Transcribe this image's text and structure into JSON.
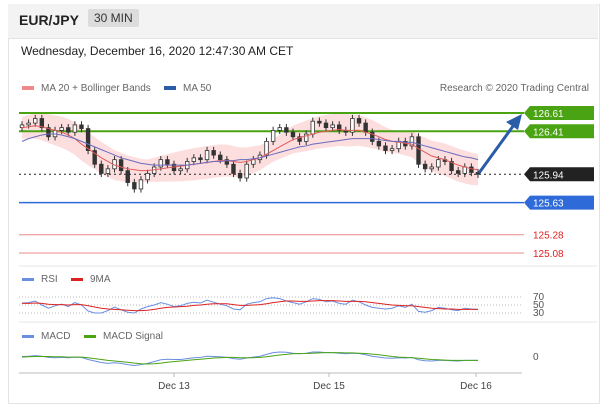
{
  "header": {
    "pair": "EUR/JPY",
    "timeframe": "30 MIN"
  },
  "timestamp": "Wednesday, December 16, 2020 12:47:30 AM CET",
  "legend": {
    "ma20": "MA 20 + Bollinger Bands",
    "ma50": "MA 50",
    "credit": "Research © 2020 Trading Central"
  },
  "rsi_legend": {
    "rsi": "RSI",
    "ma": "9MA"
  },
  "macd_legend": {
    "macd": "MACD",
    "signal": "MACD Signal"
  },
  "colors": {
    "green": "#4aa313",
    "blue": "#2f6bd8",
    "red": "#d22",
    "dark": "#222222",
    "band": "#fbd3d3",
    "ma20": "#e05a5a",
    "ma50": "#6b6bbf",
    "up": "#333333",
    "arrow": "#2b5ca8"
  },
  "chart_data": {
    "type": "candlestick",
    "price_ylim": [
      125.0,
      126.75
    ],
    "levels": [
      {
        "label": "126.61",
        "value": 126.61,
        "kind": "resistance"
      },
      {
        "label": "126.41",
        "value": 126.41,
        "kind": "resistance"
      },
      {
        "label": "125.94",
        "value": 125.94,
        "kind": "current"
      },
      {
        "label": "125.63",
        "value": 125.63,
        "kind": "pivot"
      },
      {
        "label": "125.28",
        "value": 125.28,
        "kind": "support"
      },
      {
        "label": "125.08",
        "value": 125.08,
        "kind": "support"
      }
    ],
    "x_ticks": [
      "Dec 13",
      "Dec 15",
      "Dec 16"
    ],
    "rsi_ticks": [
      "70",
      "50",
      "30"
    ],
    "macd_ticks": [
      "0"
    ],
    "price_close": [
      126.48,
      126.5,
      126.55,
      126.45,
      126.35,
      126.42,
      126.45,
      126.4,
      126.48,
      126.44,
      126.2,
      126.05,
      125.95,
      126.0,
      126.1,
      125.98,
      125.85,
      125.78,
      125.88,
      125.95,
      126.02,
      126.1,
      126.05,
      125.98,
      126.0,
      126.08,
      126.12,
      126.1,
      126.2,
      126.15,
      126.1,
      126.05,
      125.95,
      125.9,
      126.05,
      126.1,
      126.15,
      126.3,
      126.42,
      126.45,
      126.4,
      126.35,
      126.3,
      126.38,
      126.52,
      126.5,
      126.45,
      126.48,
      126.42,
      126.4,
      126.55,
      126.5,
      126.4,
      126.3,
      126.25,
      126.2,
      126.22,
      126.3,
      126.25,
      126.35,
      126.05,
      126.0,
      126.02,
      126.1,
      126.08,
      125.98,
      125.95,
      126.02,
      125.96,
      125.94
    ],
    "ma20": [
      126.45,
      126.46,
      126.47,
      126.46,
      126.44,
      126.42,
      126.4,
      126.37,
      126.33,
      126.27,
      126.22,
      126.17,
      126.12,
      126.08,
      126.04,
      126.02,
      126.0,
      125.99,
      125.98,
      125.98,
      125.99,
      126.0,
      126.01,
      126.02,
      126.03,
      126.04,
      126.05,
      126.06,
      126.07,
      126.08,
      126.09,
      126.09,
      126.08,
      126.07,
      126.08,
      126.1,
      126.12,
      126.16,
      126.2,
      126.24,
      126.28,
      126.32,
      126.34,
      126.36,
      126.38,
      126.4,
      126.41,
      126.42,
      126.43,
      126.42,
      126.42,
      126.42,
      126.4,
      126.38,
      126.35,
      126.32,
      126.3,
      126.29,
      126.28,
      126.27,
      126.22,
      126.18,
      126.14,
      126.12,
      126.1,
      126.07,
      126.04,
      126.02,
      126.0,
      125.99
    ],
    "ma50": [
      126.3,
      126.33,
      126.35,
      126.37,
      126.38,
      126.38,
      126.37,
      126.35,
      126.33,
      126.3,
      126.27,
      126.24,
      126.21,
      126.18,
      126.15,
      126.12,
      126.1,
      126.08,
      126.06,
      126.05,
      126.04,
      126.04,
      126.04,
      126.04,
      126.04,
      126.04,
      126.05,
      126.06,
      126.07,
      126.08,
      126.08,
      126.09,
      126.09,
      126.1,
      126.1,
      126.11,
      126.12,
      126.14,
      126.16,
      126.18,
      126.2,
      126.22,
      126.24,
      126.25,
      126.27,
      126.28,
      126.29,
      126.3,
      126.31,
      126.32,
      126.33,
      126.33,
      126.33,
      126.33,
      126.32,
      126.31,
      126.3,
      126.3,
      126.29,
      126.29,
      126.27,
      126.25,
      126.23,
      126.21,
      126.19,
      126.17,
      126.15,
      126.13,
      126.12,
      126.1
    ],
    "rsi": [
      55,
      56,
      60,
      50,
      42,
      48,
      52,
      46,
      56,
      50,
      35,
      30,
      30,
      36,
      45,
      38,
      32,
      30,
      40,
      46,
      50,
      56,
      52,
      46,
      48,
      54,
      57,
      55,
      62,
      57,
      52,
      48,
      40,
      38,
      52,
      56,
      58,
      66,
      68,
      66,
      60,
      56,
      52,
      58,
      66,
      64,
      58,
      60,
      54,
      52,
      62,
      58,
      50,
      44,
      42,
      40,
      42,
      48,
      44,
      52,
      34,
      32,
      36,
      44,
      42,
      38,
      36,
      42,
      40,
      39
    ],
    "rsi_ma": [
      54,
      54,
      55,
      54,
      52,
      51,
      51,
      50,
      51,
      51,
      48,
      45,
      42,
      40,
      39,
      38,
      37,
      36,
      36,
      37,
      39,
      42,
      44,
      45,
      46,
      47,
      49,
      50,
      52,
      53,
      53,
      53,
      51,
      49,
      49,
      50,
      51,
      53,
      56,
      58,
      60,
      60,
      59,
      59,
      60,
      61,
      61,
      61,
      60,
      59,
      59,
      59,
      58,
      56,
      54,
      52,
      50,
      49,
      48,
      48,
      46,
      44,
      42,
      41,
      40,
      40,
      39,
      39,
      39,
      39
    ],
    "macd": [
      0.5,
      0.6,
      0.8,
      0.6,
      0.2,
      0.1,
      0.2,
      0.1,
      0.3,
      0.2,
      -0.5,
      -1.0,
      -1.5,
      -1.8,
      -1.6,
      -1.8,
      -2.2,
      -2.5,
      -2.2,
      -1.8,
      -1.2,
      -0.6,
      -0.4,
      -0.5,
      -0.5,
      -0.2,
      0.1,
      0.2,
      0.6,
      0.5,
      0.4,
      0.2,
      -0.2,
      -0.4,
      0.0,
      0.3,
      0.6,
      1.2,
      1.8,
      2.0,
      1.9,
      1.6,
      1.4,
      1.6,
      2.0,
      2.0,
      1.8,
      1.8,
      1.6,
      1.4,
      1.6,
      1.5,
      1.1,
      0.6,
      0.3,
      0.0,
      -0.1,
      0.1,
      0.0,
      0.2,
      -0.6,
      -0.9,
      -1.0,
      -0.8,
      -0.8,
      -0.9,
      -1.0,
      -0.8,
      -0.8,
      -0.8
    ],
    "macd_signal": [
      0.3,
      0.4,
      0.5,
      0.5,
      0.5,
      0.4,
      0.4,
      0.3,
      0.3,
      0.3,
      0.1,
      -0.2,
      -0.5,
      -0.8,
      -1.0,
      -1.2,
      -1.4,
      -1.7,
      -1.9,
      -2.0,
      -1.9,
      -1.7,
      -1.4,
      -1.2,
      -1.0,
      -0.8,
      -0.6,
      -0.4,
      -0.2,
      0.0,
      0.1,
      0.2,
      0.2,
      0.1,
      0.1,
      0.1,
      0.2,
      0.4,
      0.7,
      1.0,
      1.2,
      1.4,
      1.5,
      1.5,
      1.6,
      1.7,
      1.8,
      1.8,
      1.8,
      1.7,
      1.7,
      1.6,
      1.5,
      1.3,
      1.1,
      0.8,
      0.5,
      0.3,
      0.2,
      0.1,
      -0.1,
      -0.3,
      -0.5,
      -0.6,
      -0.7,
      -0.8,
      -0.8,
      -0.8,
      -0.8,
      -0.8
    ]
  }
}
